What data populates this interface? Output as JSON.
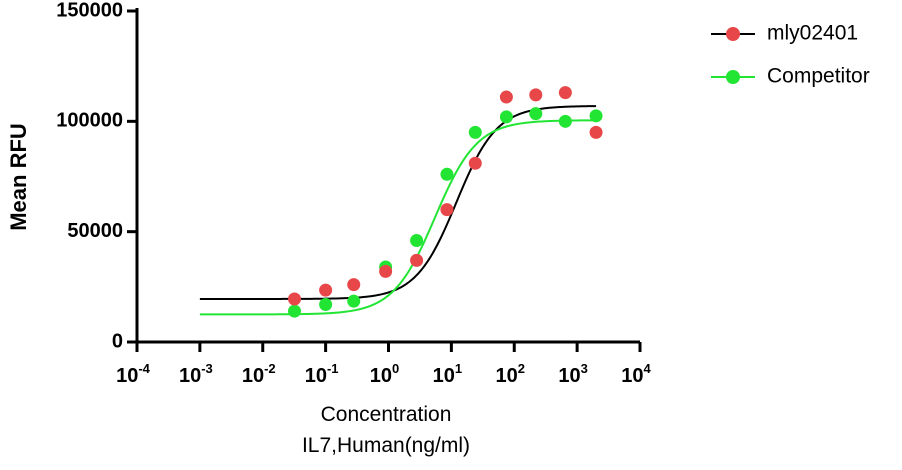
{
  "chart_data": {
    "type": "scatter",
    "title": "",
    "xscale": "log10",
    "xlabel_lines": [
      "Concentration",
      "IL7,Human(ng/ml)"
    ],
    "ylabel": "Mean RFU",
    "xlim": [
      0.0001,
      10000
    ],
    "ylim": [
      0,
      150000
    ],
    "x_ticks": [
      {
        "base": "10",
        "exp": "-4"
      },
      {
        "base": "10",
        "exp": "-3"
      },
      {
        "base": "10",
        "exp": "-2"
      },
      {
        "base": "10",
        "exp": "-1"
      },
      {
        "base": "10",
        "exp": "0"
      },
      {
        "base": "10",
        "exp": "1"
      },
      {
        "base": "10",
        "exp": "2"
      },
      {
        "base": "10",
        "exp": "3"
      },
      {
        "base": "10",
        "exp": "4"
      }
    ],
    "y_ticks": [
      "0",
      "50000",
      "100000",
      "150000"
    ],
    "legend_position": "top-right",
    "series": [
      {
        "name": "mly02401",
        "marker_color": "#E8474A",
        "line_color": "#000000",
        "x": [
          0.032,
          0.1,
          0.28,
          0.9,
          2.8,
          8.5,
          24,
          75,
          220,
          650,
          2000
        ],
        "y": [
          19500,
          23500,
          26000,
          32000,
          37000,
          60000,
          81000,
          111000,
          112000,
          113000,
          95000
        ],
        "fit": {
          "bottom": 19500,
          "top": 107000,
          "ec50": 12,
          "hill": 1.35
        }
      },
      {
        "name": "Competitor",
        "marker_color": "#22E533",
        "line_color": "#22E533",
        "x": [
          0.032,
          0.1,
          0.28,
          0.9,
          2.8,
          8.5,
          24,
          75,
          220,
          650,
          2000
        ],
        "y": [
          14000,
          17000,
          18500,
          34000,
          46000,
          76000,
          95000,
          102000,
          103500,
          100000,
          102500
        ],
        "fit": {
          "bottom": 12500,
          "top": 100500,
          "ec50": 5.5,
          "hill": 1.3
        }
      }
    ]
  }
}
